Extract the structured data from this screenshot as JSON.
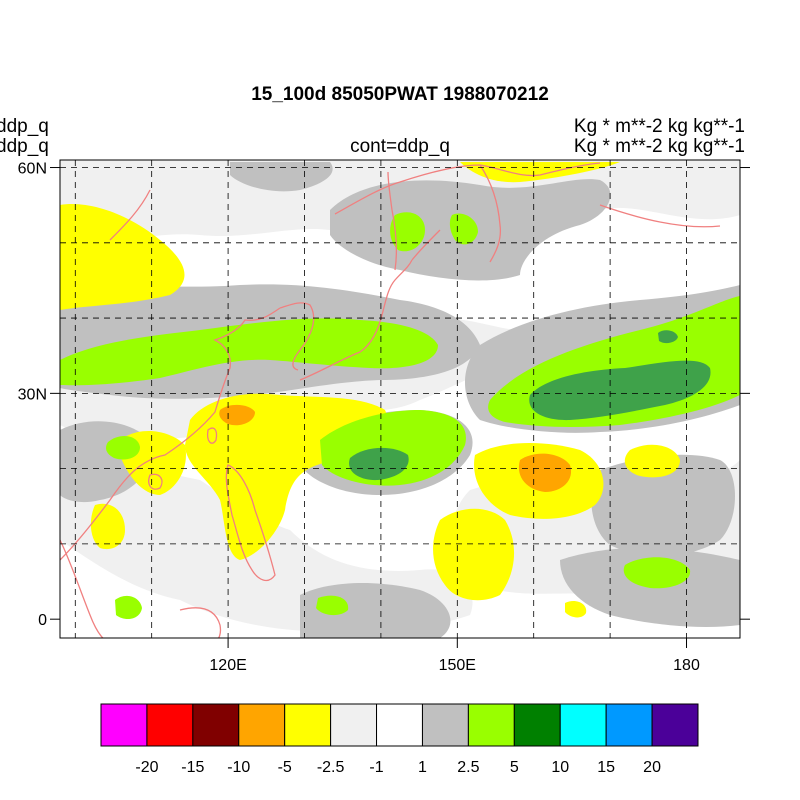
{
  "title": "15_100d 85050PWAT  1988070212",
  "left_titles": [
    "ddp_q",
    "ddp_q"
  ],
  "right_titles": [
    "Kg  * m**-2 kg kg**-1",
    "Kg  * m**-2 kg kg**-1"
  ],
  "center_title": "cont=ddp_q",
  "map": {
    "region": "Western Pacific / East Asia",
    "lon_range": [
      98,
      187
    ],
    "lat_range": [
      -2.5,
      61
    ],
    "lat_ticks": [
      {
        "value": 0,
        "label": "0"
      },
      {
        "value": 30,
        "label": "30N"
      },
      {
        "value": 60,
        "label": "60N"
      }
    ],
    "lon_ticks": [
      {
        "value": 120,
        "label": "120E"
      },
      {
        "value": 150,
        "label": "150E"
      },
      {
        "value": 180,
        "label": "180"
      }
    ],
    "grid_lon": [
      100,
      110,
      120,
      130,
      140,
      150,
      160,
      170,
      180
    ],
    "grid_lat": [
      10,
      20,
      30,
      40,
      50,
      60
    ],
    "grid_style": "dashed",
    "coastline_color": "#f08080"
  },
  "colorbar": {
    "colors": [
      "#ff00ff",
      "#ff0000",
      "#800000",
      "#ffa500",
      "#ffff00",
      "#f0f0f0",
      "#ffffff",
      "#c0c0c0",
      "#99ff00",
      "#008000",
      "#00ffff",
      "#0099ff",
      "#4b0099"
    ],
    "labels": [
      "-20",
      "-15",
      "-10",
      "-5",
      "-2.5",
      "-1",
      "1",
      "2.5",
      "5",
      "10",
      "15",
      "20"
    ]
  }
}
